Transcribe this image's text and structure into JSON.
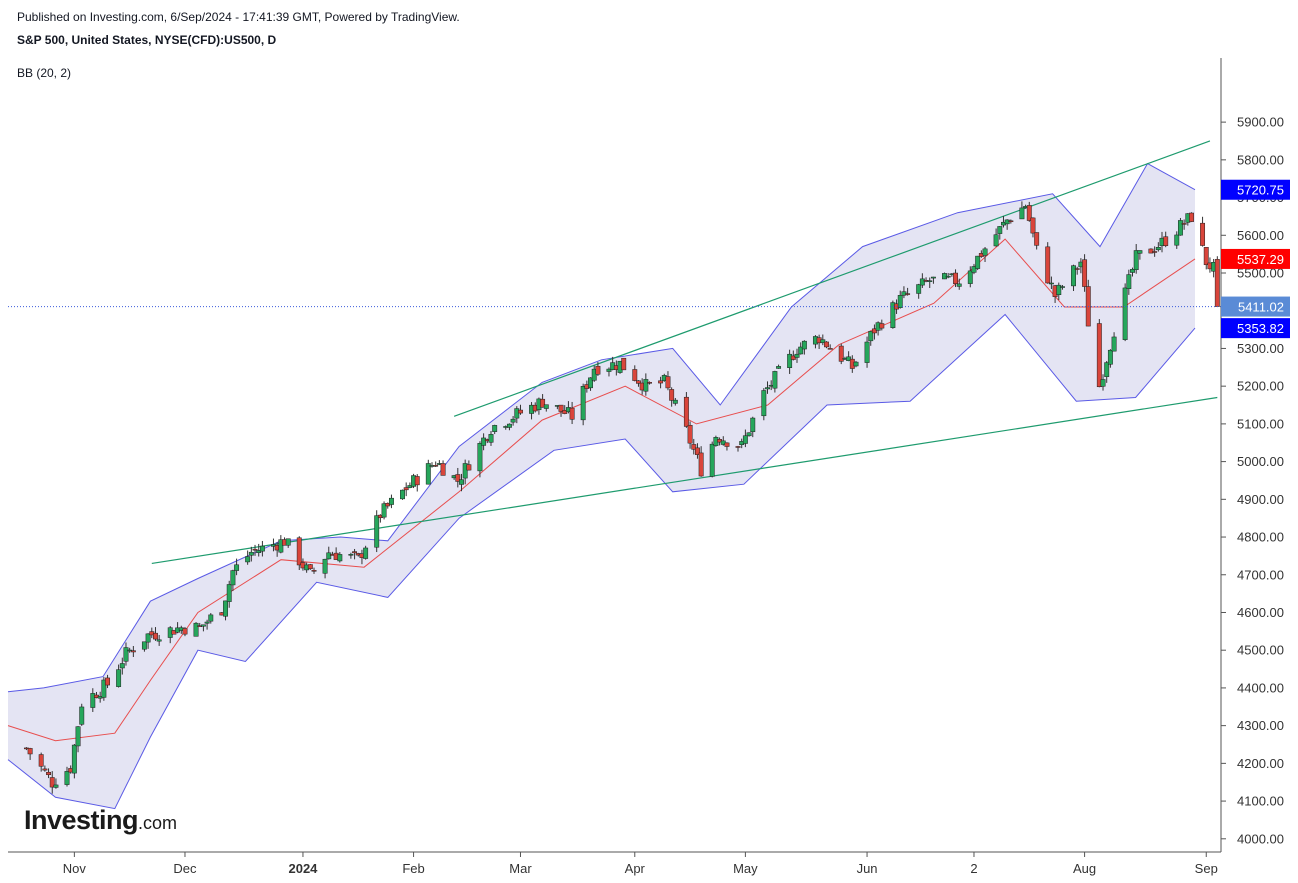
{
  "header": {
    "published": "Published on Investing.com, 6/Sep/2024 - 17:41:39 GMT, Powered by TradingView.",
    "symbol": "S&P 500, United States, NYSE(CFD):US500, D",
    "indicator": "BB (20, 2)"
  },
  "logo": {
    "main": "Investing",
    "suffix": ".com"
  },
  "colors": {
    "up": "#26a65b",
    "down": "#d9453b",
    "wick": "#333333",
    "band_fill": "#e4e4f3",
    "band_line": "#5a5ae6",
    "basis": "#e84e4e",
    "trendline": "#1e9b6e",
    "current_line": "#3b5bdb",
    "label_upper": "#0000ff",
    "label_basis": "#ff0000",
    "label_price": "#5a8bd6",
    "label_lower": "#0000ff"
  },
  "chart_data": {
    "type": "candlestick",
    "title": "S&P 500, United States, NYSE(CFD):US500, D",
    "indicator": "BB (20, 2)",
    "ylim": [
      3965,
      6070
    ],
    "y_ticks": [
      4000,
      4100,
      4200,
      4300,
      4400,
      4500,
      4600,
      4700,
      4800,
      4900,
      5000,
      5100,
      5200,
      5300,
      5400,
      5500,
      5600,
      5700,
      5800,
      5900
    ],
    "x_ticks": [
      {
        "label": "Nov",
        "date": "2023-11-01"
      },
      {
        "label": "Dec",
        "date": "2023-12-01"
      },
      {
        "label": "2024",
        "date": "2024-01-02",
        "bold": true
      },
      {
        "label": "Feb",
        "date": "2024-02-01"
      },
      {
        "label": "Mar",
        "date": "2024-03-01"
      },
      {
        "label": "Apr",
        "date": "2024-04-01"
      },
      {
        "label": "May",
        "date": "2024-05-01"
      },
      {
        "label": "Jun",
        "date": "2024-06-03"
      },
      {
        "label": "2",
        "date": "2024-07-02"
      },
      {
        "label": "Aug",
        "date": "2024-08-01"
      },
      {
        "label": "Sep",
        "date": "2024-09-03"
      }
    ],
    "price_labels": [
      {
        "key": "upper",
        "text": "5720.75",
        "value": 5720.75
      },
      {
        "key": "basis",
        "text": "5537.29",
        "value": 5537.29
      },
      {
        "key": "price",
        "text": "5411.02",
        "value": 5411.02
      },
      {
        "key": "lower",
        "text": "5353.82",
        "value": 5353.82
      }
    ],
    "current_price": 5411.02,
    "close_path": [
      [
        "2023-10-19",
        4240
      ],
      [
        "2023-10-26",
        4150
      ],
      [
        "2023-10-31",
        4190
      ],
      [
        "2023-11-03",
        4360
      ],
      [
        "2023-11-10",
        4410
      ],
      [
        "2023-11-15",
        4490
      ],
      [
        "2023-11-21",
        4540
      ],
      [
        "2023-11-30",
        4560
      ],
      [
        "2023-12-05",
        4560
      ],
      [
        "2023-12-11",
        4610
      ],
      [
        "2023-12-14",
        4710
      ],
      [
        "2023-12-19",
        4760
      ],
      [
        "2023-12-28",
        4790
      ],
      [
        "2024-01-04",
        4700
      ],
      [
        "2024-01-09",
        4760
      ],
      [
        "2024-01-17",
        4740
      ],
      [
        "2024-01-23",
        4860
      ],
      [
        "2024-01-30",
        4930
      ],
      [
        "2024-02-07",
        5000
      ],
      [
        "2024-02-13",
        4950
      ],
      [
        "2024-02-22",
        5090
      ],
      [
        "2024-03-01",
        5130
      ],
      [
        "2024-03-07",
        5160
      ],
      [
        "2024-03-15",
        5120
      ],
      [
        "2024-03-21",
        5250
      ],
      [
        "2024-03-28",
        5260
      ],
      [
        "2024-04-04",
        5200
      ],
      [
        "2024-04-09",
        5210
      ],
      [
        "2024-04-15",
        5080
      ],
      [
        "2024-04-19",
        4980
      ],
      [
        "2024-04-23",
        5070
      ],
      [
        "2024-04-30",
        5040
      ],
      [
        "2024-05-06",
        5180
      ],
      [
        "2024-05-15",
        5300
      ],
      [
        "2024-05-21",
        5330
      ],
      [
        "2024-05-30",
        5250
      ],
      [
        "2024-06-05",
        5350
      ],
      [
        "2024-06-12",
        5430
      ],
      [
        "2024-06-20",
        5480
      ],
      [
        "2024-06-28",
        5480
      ],
      [
        "2024-07-03",
        5540
      ],
      [
        "2024-07-11",
        5640
      ],
      [
        "2024-07-16",
        5680
      ],
      [
        "2024-07-19",
        5560
      ],
      [
        "2024-07-24",
        5440
      ],
      [
        "2024-07-31",
        5530
      ],
      [
        "2024-08-02",
        5370
      ],
      [
        "2024-08-05",
        5200
      ],
      [
        "2024-08-09",
        5350
      ],
      [
        "2024-08-15",
        5540
      ],
      [
        "2024-08-22",
        5580
      ],
      [
        "2024-08-30",
        5650
      ],
      [
        "2024-09-03",
        5530
      ],
      [
        "2024-09-05",
        5510
      ],
      [
        "2024-09-06",
        5411.02
      ]
    ],
    "band_upper": [
      [
        0,
        4390
      ],
      [
        0.03,
        4400
      ],
      [
        0.08,
        4430
      ],
      [
        0.1,
        4530
      ],
      [
        0.12,
        4630
      ],
      [
        0.16,
        4690
      ],
      [
        0.23,
        4790
      ],
      [
        0.28,
        4800
      ],
      [
        0.32,
        4790
      ],
      [
        0.38,
        5040
      ],
      [
        0.45,
        5210
      ],
      [
        0.5,
        5270
      ],
      [
        0.56,
        5300
      ],
      [
        0.6,
        5150
      ],
      [
        0.66,
        5410
      ],
      [
        0.72,
        5570
      ],
      [
        0.8,
        5660
      ],
      [
        0.88,
        5710
      ],
      [
        0.92,
        5570
      ],
      [
        0.96,
        5790
      ],
      [
        1,
        5720.75
      ]
    ],
    "band_lower": [
      [
        0,
        4210
      ],
      [
        0.04,
        4110
      ],
      [
        0.09,
        4080
      ],
      [
        0.12,
        4270
      ],
      [
        0.16,
        4500
      ],
      [
        0.2,
        4470
      ],
      [
        0.26,
        4680
      ],
      [
        0.32,
        4640
      ],
      [
        0.38,
        4850
      ],
      [
        0.46,
        5030
      ],
      [
        0.52,
        5060
      ],
      [
        0.56,
        4920
      ],
      [
        0.62,
        4940
      ],
      [
        0.69,
        5150
      ],
      [
        0.76,
        5160
      ],
      [
        0.84,
        5390
      ],
      [
        0.9,
        5160
      ],
      [
        0.95,
        5170
      ],
      [
        1,
        5353.82
      ]
    ],
    "band_basis": [
      [
        0,
        4300
      ],
      [
        0.04,
        4260
      ],
      [
        0.09,
        4280
      ],
      [
        0.12,
        4420
      ],
      [
        0.16,
        4600
      ],
      [
        0.23,
        4740
      ],
      [
        0.3,
        4720
      ],
      [
        0.38,
        4920
      ],
      [
        0.45,
        5110
      ],
      [
        0.52,
        5200
      ],
      [
        0.58,
        5100
      ],
      [
        0.64,
        5150
      ],
      [
        0.7,
        5310
      ],
      [
        0.78,
        5420
      ],
      [
        0.84,
        5590
      ],
      [
        0.89,
        5410
      ],
      [
        0.94,
        5410
      ],
      [
        1,
        5537.29
      ]
    ],
    "trendlines": [
      {
        "name": "upper",
        "from": [
          "2024-02-12",
          5120
        ],
        "to": [
          "2024-09-04",
          5850
        ]
      },
      {
        "name": "lower",
        "from": [
          "2023-11-22",
          4730
        ],
        "to": [
          "2024-09-06",
          5170
        ]
      }
    ]
  }
}
